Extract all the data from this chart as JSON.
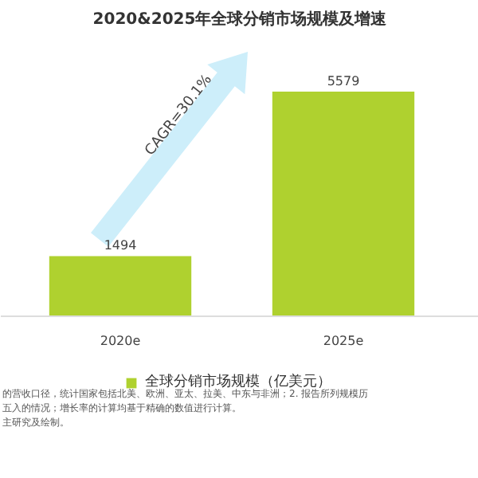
{
  "chart_data": {
    "type": "bar",
    "title": "2020&2025年全球分销市场规模及增速",
    "categories": [
      "2020e",
      "2025e"
    ],
    "series": [
      {
        "name": "全球分销市场规模（亿美元）",
        "color": "#afd12f",
        "values": [
          1494,
          5579
        ]
      }
    ],
    "data_labels": true,
    "legend": "bottom",
    "annotations": [
      "CAGR=30.1%",
      "的营收口径，统计国家包括北美、欧洲、亚太、拉美、中东与非洲；2. 报告所列规模历",
      "五入的情况；增长率的计算均基于精确的数值进行计算。",
      "主研究及绘制。"
    ]
  }
}
